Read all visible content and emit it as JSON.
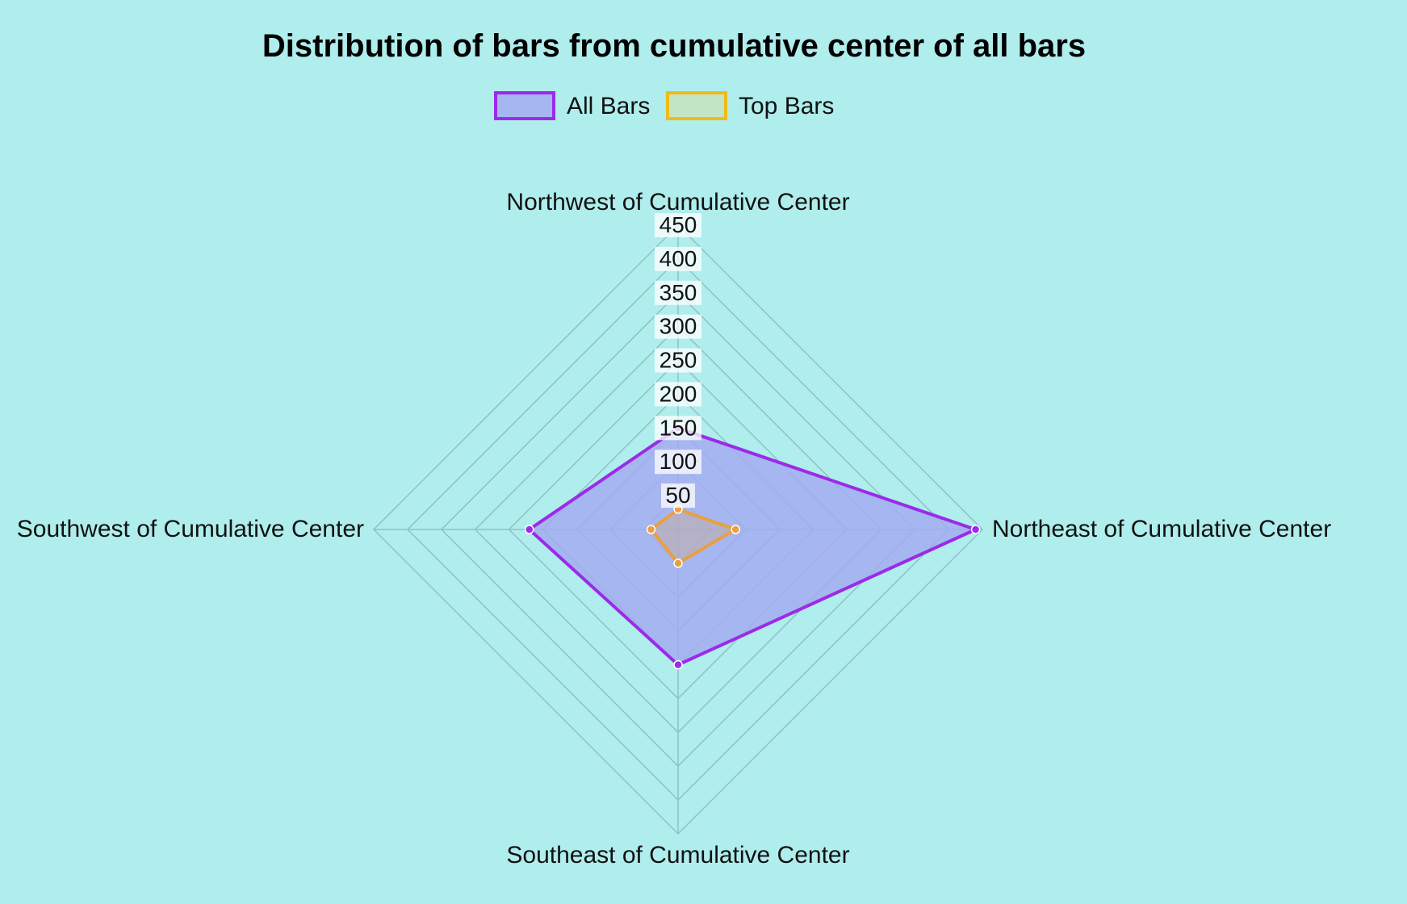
{
  "colors": {
    "background": "#b0eded",
    "grid": "#8fc2c2",
    "all_bars_border": "#9b2be8",
    "all_bars_fill": "rgba(164,172,240,0.85)",
    "top_bars_border": "#e8a040",
    "top_bars_fill": "rgba(210,170,120,0.35)",
    "top_bars_legend_border": "#f0bb1a",
    "top_bars_legend_fill": "#c2e6c4",
    "tick_backdrop": "#ffffff"
  },
  "chart_data": {
    "type": "radar",
    "title": "Distribution of bars from cumulative center of all bars",
    "labels": [
      "Northwest of Cumulative Center",
      "Northeast of Cumulative Center",
      "Southeast of Cumulative Center",
      "Southwest of Cumulative Center"
    ],
    "series": [
      {
        "name": "All Bars",
        "values": [
          150,
          440,
          200,
          220
        ]
      },
      {
        "name": "Top Bars",
        "values": [
          30,
          85,
          50,
          40
        ]
      }
    ],
    "r_min": 0,
    "r_max": 450,
    "r_ticks": [
      50,
      100,
      150,
      200,
      250,
      300,
      350,
      400,
      450
    ],
    "legend_position": "top",
    "grid": true
  }
}
